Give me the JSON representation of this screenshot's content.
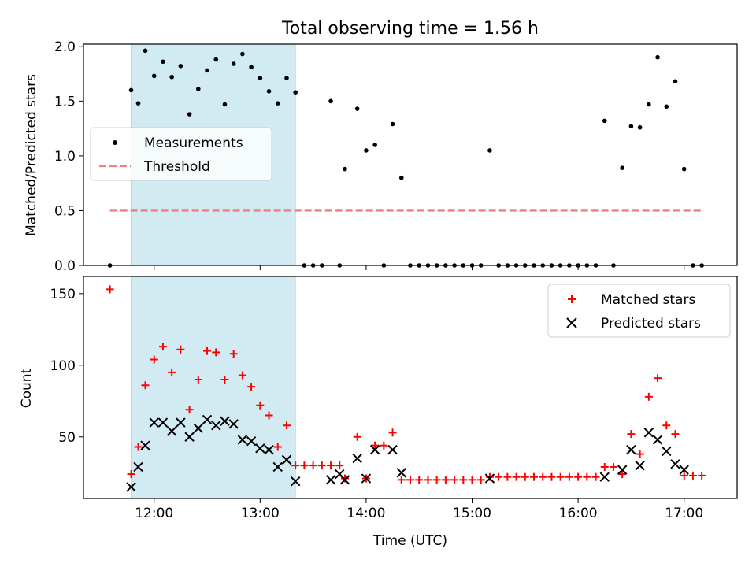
{
  "figure": {
    "title": "Total observing time = 1.56 h",
    "xlabel": "Time (UTC)",
    "x_tick_labels": [
      "12:00",
      "13:00",
      "14:00",
      "15:00",
      "16:00",
      "17:00"
    ],
    "shaded_interval": {
      "start": "11:47",
      "end": "13:20",
      "color": "#add8e6"
    }
  },
  "chart_data": [
    {
      "type": "scatter",
      "ylabel": "Matched/Predicted stars",
      "ylim": [
        0,
        2.02
      ],
      "yticks": [
        "0.0",
        "0.5",
        "1.0",
        "1.5",
        "2.0"
      ],
      "legend": {
        "placement": "center-left",
        "entries": [
          "Measurements",
          "Threshold"
        ]
      },
      "series": [
        {
          "name": "Measurements",
          "marker": "dot",
          "color": "#000000",
          "points": [
            [
              "11:35",
              0.0
            ],
            [
              "11:47",
              1.6
            ],
            [
              "11:51",
              1.48
            ],
            [
              "11:55",
              1.96
            ],
            [
              "12:00",
              1.73
            ],
            [
              "12:05",
              1.86
            ],
            [
              "12:10",
              1.72
            ],
            [
              "12:15",
              1.82
            ],
            [
              "12:20",
              1.38
            ],
            [
              "12:25",
              1.61
            ],
            [
              "12:30",
              1.78
            ],
            [
              "12:35",
              1.88
            ],
            [
              "12:40",
              1.47
            ],
            [
              "12:45",
              1.84
            ],
            [
              "12:50",
              1.93
            ],
            [
              "12:55",
              1.81
            ],
            [
              "13:00",
              1.71
            ],
            [
              "13:05",
              1.59
            ],
            [
              "13:10",
              1.48
            ],
            [
              "13:15",
              1.71
            ],
            [
              "13:20",
              1.58
            ],
            [
              "13:25",
              0.0
            ],
            [
              "13:30",
              0.0
            ],
            [
              "13:35",
              0.0
            ],
            [
              "13:40",
              1.5
            ],
            [
              "13:45",
              0.0
            ],
            [
              "13:48",
              0.88
            ],
            [
              "13:55",
              1.43
            ],
            [
              "14:00",
              1.05
            ],
            [
              "14:05",
              1.1
            ],
            [
              "14:10",
              0.0
            ],
            [
              "14:15",
              1.29
            ],
            [
              "14:20",
              0.8
            ],
            [
              "14:25",
              0.0
            ],
            [
              "14:30",
              0.0
            ],
            [
              "14:35",
              0.0
            ],
            [
              "14:40",
              0.0
            ],
            [
              "14:45",
              0.0
            ],
            [
              "14:50",
              0.0
            ],
            [
              "14:55",
              0.0
            ],
            [
              "15:00",
              0.0
            ],
            [
              "15:05",
              0.0
            ],
            [
              "15:10",
              1.05
            ],
            [
              "15:15",
              0.0
            ],
            [
              "15:20",
              0.0
            ],
            [
              "15:25",
              0.0
            ],
            [
              "15:30",
              0.0
            ],
            [
              "15:35",
              0.0
            ],
            [
              "15:40",
              0.0
            ],
            [
              "15:45",
              0.0
            ],
            [
              "15:50",
              0.0
            ],
            [
              "15:55",
              0.0
            ],
            [
              "16:00",
              0.0
            ],
            [
              "16:05",
              0.0
            ],
            [
              "16:10",
              0.0
            ],
            [
              "16:15",
              1.32
            ],
            [
              "16:20",
              0.0
            ],
            [
              "16:25",
              0.89
            ],
            [
              "16:30",
              1.27
            ],
            [
              "16:35",
              1.26
            ],
            [
              "16:40",
              1.47
            ],
            [
              "16:45",
              1.9
            ],
            [
              "16:50",
              1.45
            ],
            [
              "16:55",
              1.68
            ],
            [
              "17:00",
              0.88
            ],
            [
              "17:05",
              0.0
            ],
            [
              "17:10",
              0.0
            ]
          ]
        },
        {
          "name": "Threshold",
          "type": "line",
          "style": "dashed",
          "color": "#f08080",
          "points": [
            [
              "11:35",
              0.5
            ],
            [
              "17:10",
              0.5
            ]
          ]
        }
      ]
    },
    {
      "type": "scatter",
      "ylabel": "Count",
      "ylim": [
        7,
        162
      ],
      "yticks": [
        "50",
        "100",
        "150"
      ],
      "legend": {
        "placement": "top-right",
        "entries": [
          "Matched stars",
          "Predicted stars"
        ]
      },
      "series": [
        {
          "name": "Matched stars",
          "marker": "plus",
          "color": "#ff0000",
          "points": [
            [
              "11:35",
              153
            ],
            [
              "11:47",
              24
            ],
            [
              "11:51",
              43
            ],
            [
              "11:55",
              86
            ],
            [
              "12:00",
              104
            ],
            [
              "12:05",
              113
            ],
            [
              "12:10",
              95
            ],
            [
              "12:15",
              111
            ],
            [
              "12:20",
              69
            ],
            [
              "12:25",
              90
            ],
            [
              "12:30",
              110
            ],
            [
              "12:35",
              109
            ],
            [
              "12:40",
              90
            ],
            [
              "12:45",
              108
            ],
            [
              "12:50",
              93
            ],
            [
              "12:55",
              85
            ],
            [
              "13:00",
              72
            ],
            [
              "13:05",
              65
            ],
            [
              "13:10",
              43
            ],
            [
              "13:15",
              58
            ],
            [
              "13:20",
              30
            ],
            [
              "13:25",
              30
            ],
            [
              "13:30",
              30
            ],
            [
              "13:35",
              30
            ],
            [
              "13:40",
              30
            ],
            [
              "13:45",
              30
            ],
            [
              "13:48",
              21
            ],
            [
              "13:55",
              50
            ],
            [
              "14:00",
              21
            ],
            [
              "14:05",
              44
            ],
            [
              "14:10",
              44
            ],
            [
              "14:15",
              53
            ],
            [
              "14:20",
              20
            ],
            [
              "14:25",
              20
            ],
            [
              "14:30",
              20
            ],
            [
              "14:35",
              20
            ],
            [
              "14:40",
              20
            ],
            [
              "14:45",
              20
            ],
            [
              "14:50",
              20
            ],
            [
              "14:55",
              20
            ],
            [
              "15:00",
              20
            ],
            [
              "15:05",
              20
            ],
            [
              "15:10",
              22
            ],
            [
              "15:15",
              22
            ],
            [
              "15:20",
              22
            ],
            [
              "15:25",
              22
            ],
            [
              "15:30",
              22
            ],
            [
              "15:35",
              22
            ],
            [
              "15:40",
              22
            ],
            [
              "15:45",
              22
            ],
            [
              "15:50",
              22
            ],
            [
              "15:55",
              22
            ],
            [
              "16:00",
              22
            ],
            [
              "16:05",
              22
            ],
            [
              "16:10",
              22
            ],
            [
              "16:15",
              29
            ],
            [
              "16:20",
              29
            ],
            [
              "16:25",
              24
            ],
            [
              "16:30",
              52
            ],
            [
              "16:35",
              38
            ],
            [
              "16:40",
              78
            ],
            [
              "16:45",
              91
            ],
            [
              "16:50",
              58
            ],
            [
              "16:55",
              52
            ],
            [
              "17:00",
              23
            ],
            [
              "17:05",
              23
            ],
            [
              "17:10",
              23
            ]
          ]
        },
        {
          "name": "Predicted stars",
          "marker": "cross",
          "color": "#000000",
          "points": [
            [
              "11:47",
              15
            ],
            [
              "11:51",
              29
            ],
            [
              "11:55",
              44
            ],
            [
              "12:00",
              60
            ],
            [
              "12:05",
              60
            ],
            [
              "12:10",
              54
            ],
            [
              "12:15",
              60
            ],
            [
              "12:20",
              50
            ],
            [
              "12:25",
              56
            ],
            [
              "12:30",
              62
            ],
            [
              "12:35",
              58
            ],
            [
              "12:40",
              61
            ],
            [
              "12:45",
              59
            ],
            [
              "12:50",
              48
            ],
            [
              "12:55",
              47
            ],
            [
              "13:00",
              42
            ],
            [
              "13:05",
              41
            ],
            [
              "13:10",
              29
            ],
            [
              "13:15",
              34
            ],
            [
              "13:20",
              19
            ],
            [
              "13:40",
              20
            ],
            [
              "13:45",
              24
            ],
            [
              "13:48",
              20
            ],
            [
              "13:55",
              35
            ],
            [
              "14:00",
              21
            ],
            [
              "14:05",
              41
            ],
            [
              "14:15",
              41
            ],
            [
              "14:20",
              25
            ],
            [
              "15:10",
              21
            ],
            [
              "16:15",
              22
            ],
            [
              "16:25",
              27
            ],
            [
              "16:30",
              41
            ],
            [
              "16:35",
              30
            ],
            [
              "16:40",
              53
            ],
            [
              "16:45",
              48
            ],
            [
              "16:50",
              40
            ],
            [
              "16:55",
              31
            ],
            [
              "17:00",
              27
            ]
          ]
        }
      ]
    }
  ]
}
